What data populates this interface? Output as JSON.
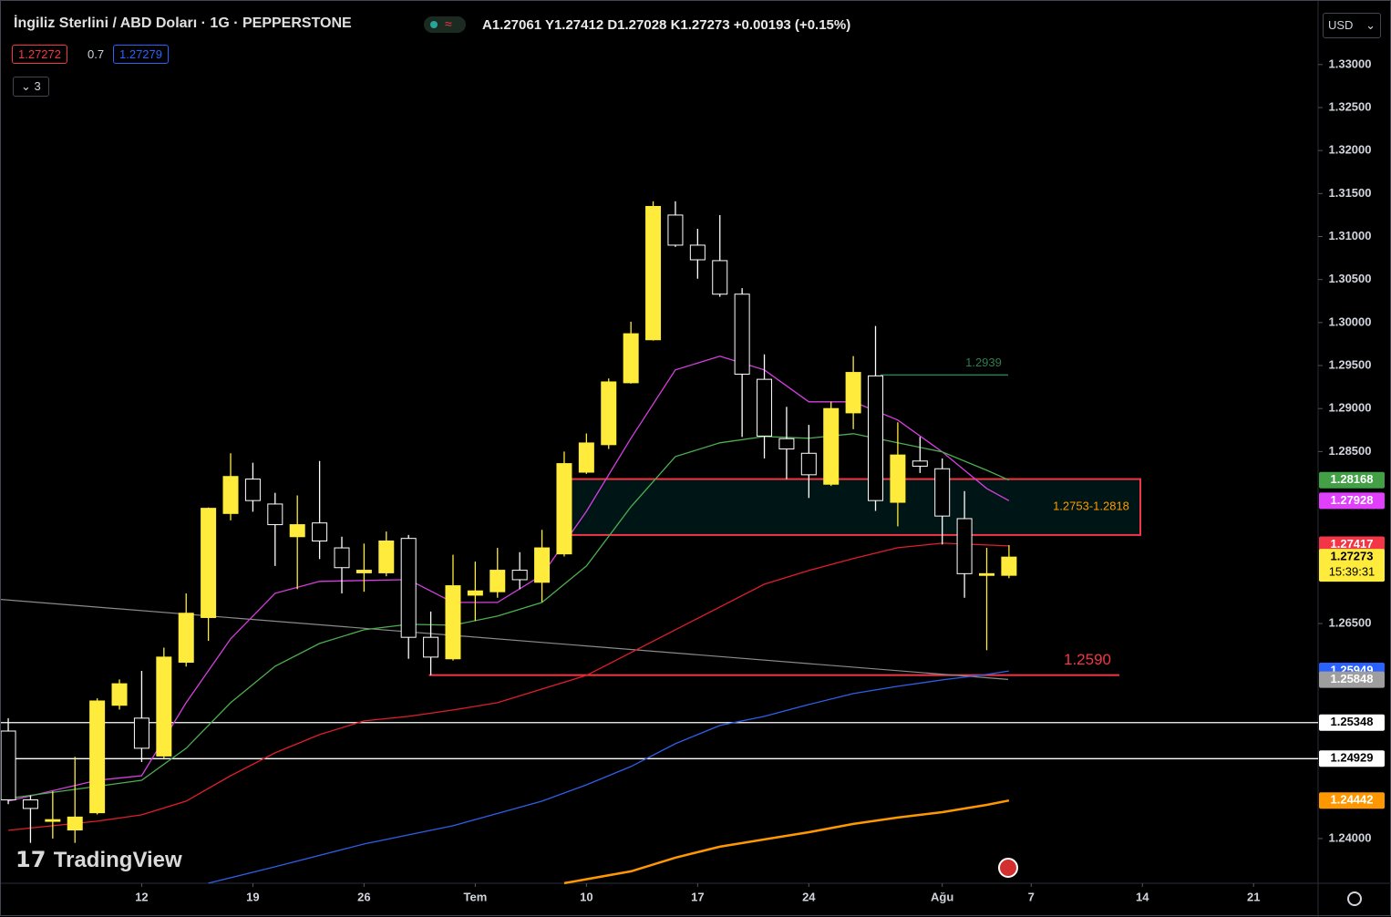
{
  "header": {
    "symbol": "İngiliz Sterlini / ABD Doları · 1G · PEPPERSTONE",
    "ohlc": "A1.27061  Y1.27412  D1.27028  K1.27273  +0.00193 (+0.15%)",
    "sell": "1.27272",
    "spread": "0.7",
    "buy": "1.27279",
    "indicators": "3",
    "currency": "USD",
    "logo": "TradingView"
  },
  "chart_data": {
    "type": "candlestick",
    "xlim": [
      -0.33,
      58.9
    ],
    "ylim": [
      1.2348,
      1.3374
    ],
    "xticks": [
      {
        "value": 6,
        "label": "12"
      },
      {
        "value": 11,
        "label": "19"
      },
      {
        "value": 16,
        "label": "26"
      },
      {
        "value": 21,
        "label": "Tem"
      },
      {
        "value": 26,
        "label": "10"
      },
      {
        "value": 31,
        "label": "17"
      },
      {
        "value": 36,
        "label": "24"
      },
      {
        "value": 42,
        "label": "Ağu"
      },
      {
        "value": 46,
        "label": "7"
      },
      {
        "value": 51,
        "label": "14"
      },
      {
        "value": 56,
        "label": "21"
      }
    ],
    "yticks": [
      {
        "value": 1.33,
        "label": "1.33000"
      },
      {
        "value": 1.325,
        "label": "1.32500"
      },
      {
        "value": 1.32,
        "label": "1.32000"
      },
      {
        "value": 1.315,
        "label": "1.31500"
      },
      {
        "value": 1.31,
        "label": "1.31000"
      },
      {
        "value": 1.305,
        "label": "1.30500"
      },
      {
        "value": 1.3,
        "label": "1.30000"
      },
      {
        "value": 1.295,
        "label": "1.29500"
      },
      {
        "value": 1.29,
        "label": "1.29000"
      },
      {
        "value": 1.285,
        "label": "1.28500"
      },
      {
        "value": 1.265,
        "label": "1.26500"
      },
      {
        "value": 1.24,
        "label": "1.24000"
      }
    ],
    "up_color": "#ffeb3b",
    "down_color": "#ffffff",
    "open": [
      1.2525,
      1.2445,
      1.242,
      1.241,
      1.243,
      1.2555,
      1.254,
      1.2496,
      1.2605,
      1.2657,
      1.2778,
      1.2818,
      1.2789,
      1.2751,
      1.2767,
      1.2738,
      1.2709,
      1.2709,
      1.2749,
      1.2634,
      1.2609,
      1.2683,
      1.2687,
      1.2712,
      1.2698,
      1.2731,
      1.2826,
      1.2858,
      1.293,
      1.298,
      1.3125,
      1.309,
      1.3072,
      1.3033,
      1.2934,
      1.2865,
      1.2848,
      1.2812,
      1.2895,
      1.2938,
      1.2791,
      1.2839,
      1.283,
      1.2772,
      1.2706,
      1.27061
    ],
    "high": [
      1.254,
      1.245,
      1.2455,
      1.2495,
      1.2563,
      1.2585,
      1.2595,
      1.2622,
      1.2685,
      1.2785,
      1.2848,
      1.2837,
      1.2802,
      1.2799,
      1.2839,
      1.2751,
      1.2743,
      1.2757,
      1.2753,
      1.2664,
      1.273,
      1.2722,
      1.2738,
      1.2733,
      1.2759,
      1.285,
      1.2871,
      1.2935,
      1.3001,
      1.3141,
      1.3141,
      1.3109,
      1.3125,
      1.304,
      1.2963,
      1.2902,
      1.2881,
      1.2908,
      1.2961,
      1.2996,
      1.2884,
      1.2867,
      1.2842,
      1.2804,
      1.2738,
      1.27412
    ],
    "low": [
      1.244,
      1.2395,
      1.24,
      1.2395,
      1.2428,
      1.255,
      1.2489,
      1.2492,
      1.26,
      1.263,
      1.277,
      1.278,
      1.2717,
      1.269,
      1.2725,
      1.2685,
      1.2687,
      1.2705,
      1.2609,
      1.259,
      1.2607,
      1.2653,
      1.268,
      1.269,
      1.2675,
      1.2728,
      1.2824,
      1.2853,
      1.2929,
      1.2979,
      1.3088,
      1.3051,
      1.303,
      1.2867,
      1.2842,
      1.2818,
      1.2796,
      1.281,
      1.2876,
      1.2781,
      1.2763,
      1.2825,
      1.2742,
      1.268,
      1.2619,
      1.27028
    ],
    "close": [
      1.2445,
      1.2435,
      1.2422,
      1.2425,
      1.256,
      1.258,
      1.2505,
      1.2611,
      1.2662,
      1.2784,
      1.2821,
      1.2793,
      1.2765,
      1.2765,
      1.2746,
      1.2715,
      1.2712,
      1.2746,
      1.2634,
      1.2611,
      1.2694,
      1.2688,
      1.2712,
      1.2701,
      1.2738,
      1.2836,
      1.286,
      1.2931,
      1.2987,
      1.3135,
      1.309,
      1.3073,
      1.3033,
      1.294,
      1.2868,
      1.2853,
      1.2823,
      1.29,
      1.2942,
      1.2793,
      1.2846,
      1.2833,
      1.2775,
      1.2708,
      1.2708,
      1.27273
    ],
    "lines": [
      {
        "color": "#d63fe0",
        "x": [
          0,
          4,
          6,
          8,
          9,
          10,
          12,
          14,
          18,
          20,
          22,
          24,
          26,
          28,
          30,
          32,
          34,
          36,
          38,
          40,
          42,
          44,
          45
        ],
        "values": [
          1.24435,
          1.24678,
          1.24731,
          1.2558,
          1.25951,
          1.26322,
          1.26852,
          1.2699,
          1.27011,
          1.26746,
          1.26746,
          1.27064,
          1.27806,
          1.28654,
          1.29449,
          1.29608,
          1.29449,
          1.29078,
          1.29078,
          1.28866,
          1.28495,
          1.28071,
          1.27928
        ]
      },
      {
        "color": "#4caf50",
        "x": [
          0,
          6,
          8,
          10,
          12,
          14,
          16,
          18,
          20,
          22,
          24,
          26,
          28,
          30,
          32,
          34,
          36,
          38,
          40,
          42,
          44,
          45
        ],
        "values": [
          1.24467,
          1.24678,
          1.2505,
          1.2558,
          1.26004,
          1.26269,
          1.26428,
          1.26491,
          1.26481,
          1.26587,
          1.26746,
          1.2717,
          1.27859,
          1.28442,
          1.28601,
          1.28675,
          1.28654,
          1.28707,
          1.28601,
          1.28495,
          1.28283,
          1.28168
        ]
      },
      {
        "color": "#e01e2b",
        "x": [
          0,
          4,
          6,
          8,
          10,
          12,
          14,
          16,
          18,
          20,
          22,
          24,
          26,
          28,
          30,
          32,
          34,
          36,
          38,
          40,
          42,
          44,
          45
        ],
        "values": [
          1.24096,
          1.24202,
          1.24276,
          1.24435,
          1.24731,
          1.24997,
          1.25209,
          1.25368,
          1.25421,
          1.25495,
          1.2558,
          1.25739,
          1.25898,
          1.26163,
          1.26428,
          1.26693,
          1.26958,
          1.27117,
          1.27255,
          1.27382,
          1.27435,
          1.27413,
          1.27403
        ]
      },
      {
        "color": "#2f5fe8",
        "x": [
          9,
          12,
          16,
          20,
          24,
          26,
          28,
          30,
          32,
          34,
          36,
          38,
          40,
          42,
          44,
          45
        ],
        "values": [
          1.23481,
          1.23672,
          1.23937,
          1.24149,
          1.24435,
          1.24625,
          1.24838,
          1.25103,
          1.25315,
          1.25421,
          1.25559,
          1.25686,
          1.2577,
          1.25845,
          1.25908,
          1.25949
        ]
      },
      {
        "color": "#ff9800",
        "x": [
          25,
          28,
          30,
          32,
          34,
          36,
          38,
          40,
          42,
          44,
          45
        ],
        "values": [
          1.23481,
          1.23619,
          1.23778,
          1.23905,
          1.2399,
          1.24074,
          1.2417,
          1.24244,
          1.24307,
          1.24392,
          1.24442
        ]
      }
    ],
    "trendline": {
      "color": "#8a8a8a",
      "values": [
        1.2678,
        1.2585
      ]
    },
    "hlines": [
      {
        "value": 1.25348,
        "color": "#ffffff"
      },
      {
        "value": 1.24929,
        "color": "#ffffff"
      }
    ],
    "support": {
      "value": 1.259,
      "label": "1.2590",
      "color": "#f23645"
    },
    "target": {
      "value": 1.2939,
      "color": "#2e7d4f"
    },
    "zone": {
      "low": 1.2753,
      "high": 1.2818,
      "label": "1.2753-1.2818",
      "color": "#f23645",
      "text_color": "#ff9800"
    },
    "badges": [
      {
        "value": 1.28168,
        "color": "#43a047"
      },
      {
        "value": 1.27928,
        "color": "#e040fb"
      },
      {
        "value": 1.27417,
        "color": "#f23645"
      },
      {
        "value": 1.27273,
        "color": "#ffeb3b"
      },
      {
        "value": 1.25949,
        "color": "#2962ff"
      },
      {
        "value": 1.25848,
        "color": "#9e9e9e"
      },
      {
        "value": 1.25348,
        "color": "#ffffff"
      },
      {
        "value": 1.24929,
        "color": "#ffffff"
      },
      {
        "value": 1.24442,
        "color": "#ff9800"
      }
    ],
    "countdown": "15:39:31"
  }
}
